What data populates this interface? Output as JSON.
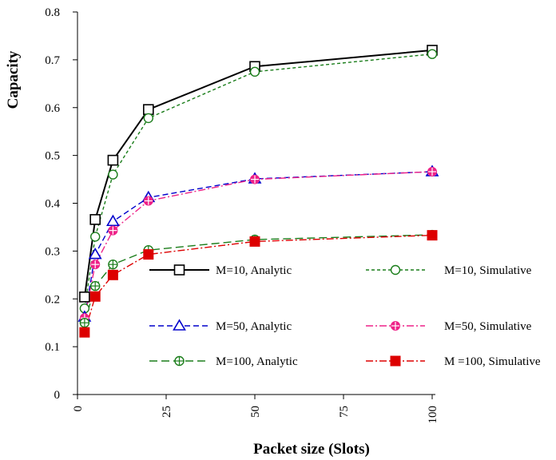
{
  "chart_data": {
    "type": "line",
    "title": "",
    "xlabel": "Packet size (Slots)",
    "ylabel": "Capacity",
    "xlim": [
      0,
      100
    ],
    "ylim": [
      0,
      0.8
    ],
    "xticks": [
      "0",
      "25",
      "50",
      "75",
      "100"
    ],
    "yticks": [
      "0",
      "0.1",
      "0.2",
      "0.3",
      "0.4",
      "0.5",
      "0.6",
      "0.7",
      "0.8"
    ],
    "grid": false,
    "legend_position": "bottom-right",
    "series": [
      {
        "name": "M=10, Analytic",
        "color": "#000000",
        "marker": "square",
        "dash": "solid",
        "x": [
          2,
          5,
          10,
          20,
          50,
          100
        ],
        "y": [
          0.204,
          0.366,
          0.49,
          0.596,
          0.686,
          0.72
        ]
      },
      {
        "name": "M=10, Simulative",
        "color": "#1a7d1a",
        "marker": "circle-open",
        "dash": "short-dash",
        "x": [
          2,
          5,
          10,
          20,
          50,
          100
        ],
        "y": [
          0.18,
          0.33,
          0.46,
          0.578,
          0.675,
          0.712
        ]
      },
      {
        "name": "M=50, Analytic",
        "color": "#0000cc",
        "marker": "triangle-open",
        "dash": "dash",
        "x": [
          2,
          5,
          10,
          20,
          50,
          100
        ],
        "y": [
          0.162,
          0.293,
          0.362,
          0.412,
          0.451,
          0.466
        ]
      },
      {
        "name": "M=50, Simulative",
        "color": "#ee2288",
        "marker": "diamond-cross",
        "dash": "dash-dot",
        "x": [
          2,
          5,
          10,
          20,
          50,
          100
        ],
        "y": [
          0.16,
          0.272,
          0.343,
          0.405,
          0.45,
          0.466
        ]
      },
      {
        "name": "M=100, Analytic",
        "color": "#1a7d1a",
        "marker": "circle-cross",
        "dash": "long-dash",
        "x": [
          2,
          5,
          10,
          20,
          50,
          100
        ],
        "y": [
          0.15,
          0.227,
          0.272,
          0.302,
          0.324,
          0.334
        ]
      },
      {
        "name": "M =100, Simulative",
        "color": "#dd0000",
        "marker": "square-half",
        "dash": "dash-dot",
        "x": [
          2,
          5,
          10,
          20,
          50,
          100
        ],
        "y": [
          0.13,
          0.205,
          0.25,
          0.293,
          0.32,
          0.333
        ]
      }
    ]
  }
}
